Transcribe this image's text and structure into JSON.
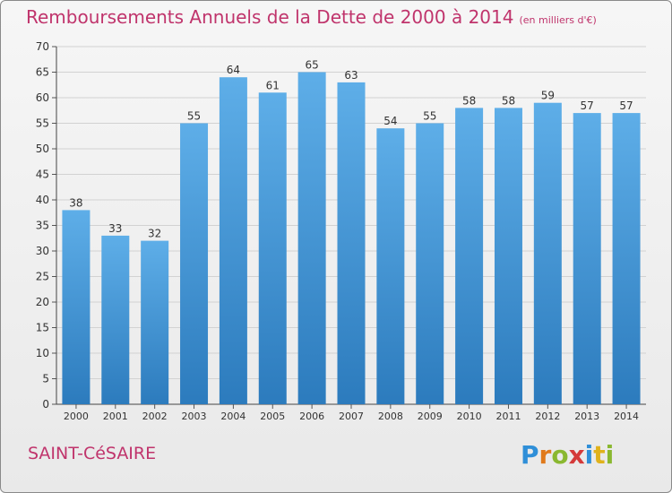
{
  "chart_data": {
    "type": "bar",
    "title": "Remboursements Annuels de la Dette de 2000 à 2014",
    "subtitle": "(en milliers d'€)",
    "categories": [
      "2000",
      "2001",
      "2002",
      "2003",
      "2004",
      "2005",
      "2006",
      "2007",
      "2008",
      "2009",
      "2010",
      "2011",
      "2012",
      "2013",
      "2014"
    ],
    "values": [
      38,
      33,
      32,
      55,
      64,
      61,
      65,
      63,
      54,
      55,
      58,
      58,
      59,
      57,
      57
    ],
    "ylim": [
      0,
      70
    ],
    "yticks": [
      0,
      5,
      10,
      15,
      20,
      25,
      30,
      35,
      40,
      45,
      50,
      55,
      60,
      65,
      70
    ],
    "grid": true,
    "bar_color": "#4f9fdd"
  },
  "footer": {
    "place": "SAINT-CéSAIRE",
    "logo_text": "Proxiti"
  },
  "colors": {
    "title": "#c0346c",
    "bar_top": "#5aaae6",
    "bar_bottom": "#2f7fc0"
  }
}
